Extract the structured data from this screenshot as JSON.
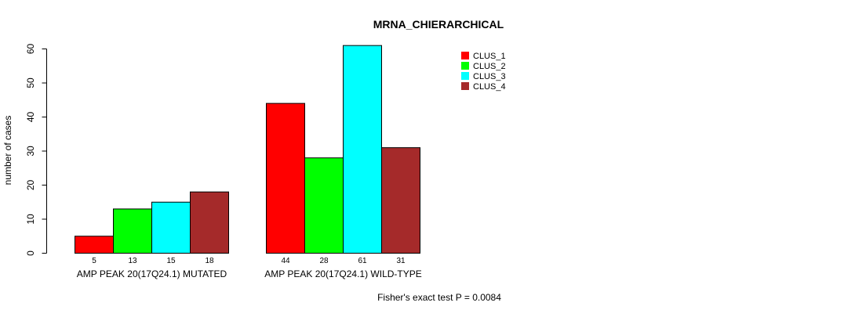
{
  "chart_data": {
    "type": "bar",
    "title": "MRNA_CHIERARCHICAL",
    "ylabel": "number of cases",
    "xlabel": "",
    "ylim": [
      0,
      60
    ],
    "yticks": [
      0,
      10,
      20,
      30,
      40,
      50,
      60
    ],
    "categories": [
      "AMP PEAK 20(17Q24.1) MUTATED",
      "AMP PEAK 20(17Q24.1) WILD-TYPE"
    ],
    "series": [
      {
        "name": "CLUS_1",
        "color": "#ff0000",
        "values": [
          5,
          44
        ]
      },
      {
        "name": "CLUS_2",
        "color": "#00ff00",
        "values": [
          13,
          28
        ]
      },
      {
        "name": "CLUS_3",
        "color": "#00ffff",
        "values": [
          15,
          61
        ]
      },
      {
        "name": "CLUS_4",
        "color": "#a52a2a",
        "values": [
          18,
          31
        ]
      }
    ],
    "legend_position": "top-right",
    "footnote": "Fisher's exact test P = 0.0084"
  }
}
